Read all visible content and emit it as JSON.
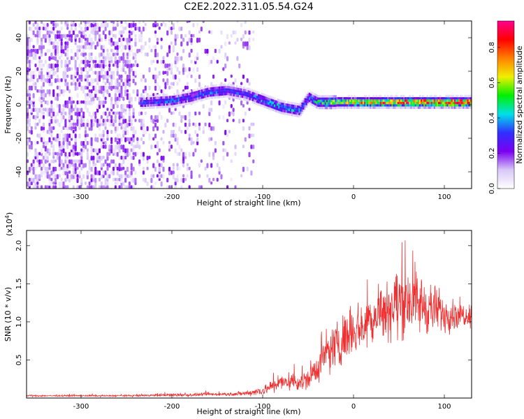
{
  "figure": {
    "title": "C2E2.2022.311.05.54.G24"
  },
  "colorbar": {
    "label": "Normalized spectral amplitude",
    "range": [
      0.0,
      0.95
    ],
    "ticks": [
      0.0,
      0.2,
      0.4,
      0.6,
      0.8
    ],
    "tick_labels": [
      "0.0",
      "0.2",
      "0.4",
      "0.6",
      "0.8"
    ],
    "colors": [
      "#ffffff",
      "#d8c8f8",
      "#7a00f0",
      "#3030ff",
      "#00e0e8",
      "#00f000",
      "#f0f000",
      "#ff8000",
      "#ff0000",
      "#ff0090"
    ]
  },
  "chart_data": [
    {
      "type": "heatmap",
      "title": "",
      "xlabel": "Height of straight line (km)",
      "ylabel": "Frequency (Hz)",
      "xlim": [
        -360,
        130
      ],
      "ylim": [
        -50,
        50
      ],
      "xticks": [
        -300,
        -200,
        -100,
        0,
        100
      ],
      "xtick_labels": [
        "-300",
        "-200",
        "-100",
        "0",
        "100"
      ],
      "yticks": [
        -40,
        -20,
        0,
        20,
        40
      ],
      "ytick_labels": [
        "-40",
        "-20",
        "0",
        "20",
        "40"
      ],
      "colormap": "white-purple-blue-cyan-green-yellow-red-pink",
      "signal_track": {
        "x": [
          -230,
          -200,
          -180,
          -160,
          -140,
          -120,
          -100,
          -80,
          -70,
          -60,
          -50,
          -40,
          -30,
          -20,
          0,
          50,
          100,
          130
        ],
        "frequency": [
          1,
          2,
          4,
          7,
          8,
          6,
          2,
          -2,
          -3,
          -4,
          4,
          1,
          1,
          1,
          1,
          1,
          1,
          1
        ],
        "amplitude": [
          0.3,
          0.32,
          0.3,
          0.33,
          0.32,
          0.3,
          0.35,
          0.4,
          0.4,
          0.35,
          0.35,
          0.45,
          0.5,
          0.55,
          0.65,
          0.8,
          0.85,
          0.85
        ]
      },
      "noise_region": {
        "x": [
          -360,
          -110
        ],
        "amplitude": 0.08
      }
    },
    {
      "type": "line",
      "title": "",
      "xlabel": "Height of straight line (km)",
      "ylabel": "SNR (10 * v/v)",
      "y_multiplier_label": "(x10",
      "y_multiplier_exponent": "4",
      "y_multiplier_suffix": ")",
      "xlim": [
        -360,
        130
      ],
      "ylim": [
        0,
        2.2
      ],
      "xticks": [
        -300,
        -200,
        -100,
        0,
        100
      ],
      "xtick_labels": [
        "-300",
        "-200",
        "-100",
        "0",
        "100"
      ],
      "yticks": [
        0.5,
        1.0,
        1.5,
        2.0
      ],
      "ytick_labels": [
        "0.5",
        "1.0",
        "1.5",
        "2.0"
      ],
      "series": [
        {
          "color": "#f03030",
          "x": [
            -360,
            -300,
            -250,
            -200,
            -180,
            -160,
            -140,
            -120,
            -100,
            -90,
            -80,
            -70,
            -60,
            -50,
            -40,
            -30,
            -20,
            -10,
            0,
            10,
            20,
            30,
            40,
            50,
            60,
            70,
            80,
            90,
            100,
            110,
            120,
            130
          ],
          "y": [
            0.03,
            0.03,
            0.03,
            0.04,
            0.04,
            0.05,
            0.05,
            0.06,
            0.1,
            0.15,
            0.2,
            0.22,
            0.22,
            0.25,
            0.4,
            0.55,
            0.7,
            0.8,
            0.9,
            0.95,
            1.05,
            1.15,
            1.2,
            1.25,
            1.3,
            1.25,
            1.2,
            1.15,
            1.12,
            1.1,
            1.1,
            1.1
          ],
          "spread": [
            0.01,
            0.01,
            0.01,
            0.02,
            0.02,
            0.02,
            0.02,
            0.03,
            0.06,
            0.08,
            0.1,
            0.12,
            0.12,
            0.15,
            0.2,
            0.25,
            0.3,
            0.3,
            0.3,
            0.3,
            0.35,
            0.35,
            0.4,
            0.45,
            0.45,
            0.4,
            0.35,
            0.3,
            0.25,
            0.2,
            0.15,
            0.15
          ]
        }
      ]
    }
  ]
}
